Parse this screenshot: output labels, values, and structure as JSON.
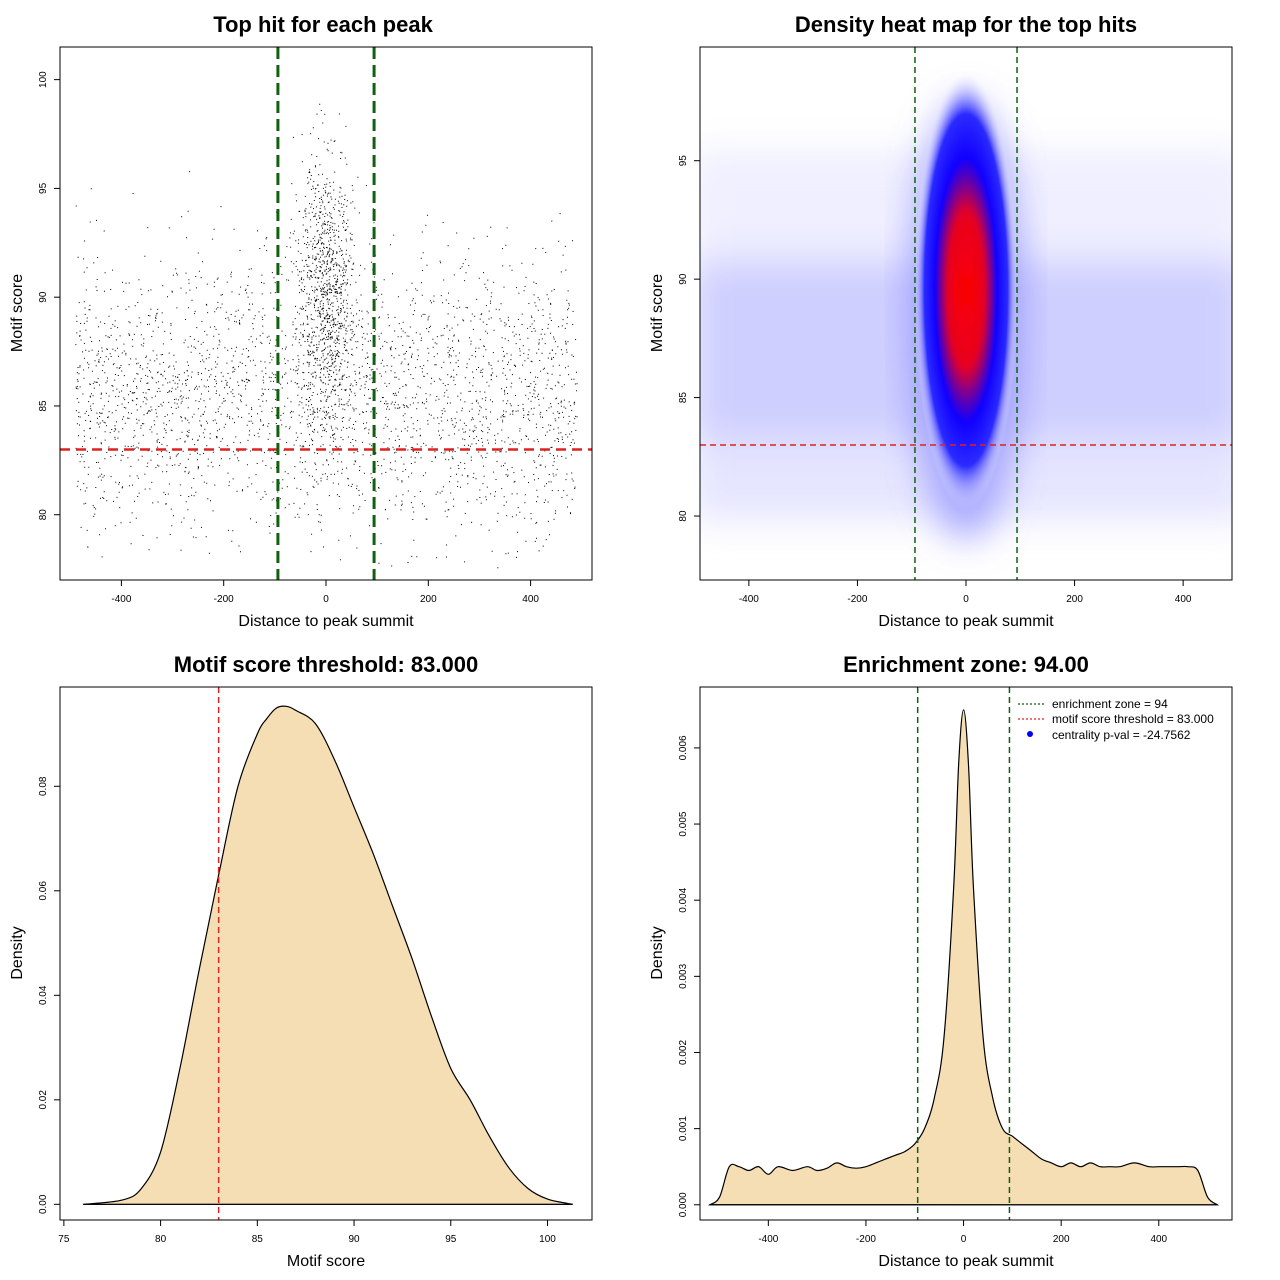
{
  "colors": {
    "threshold": "#dd2222",
    "zone": "#106010",
    "fill": "#f5deb3",
    "point": "#000000",
    "heat_low": "#ffffff",
    "heat_mid": "#0000ff",
    "heat_high": "#ff0000",
    "legend_dot": "#0000ff"
  },
  "chart_data": [
    {
      "type": "scatter",
      "title": "Top hit for each peak",
      "xlabel": "Distance to peak summit",
      "ylabel": "Motif score",
      "xlim": [
        -520,
        520
      ],
      "ylim": [
        77,
        101.5
      ],
      "xticks": [
        -400,
        -200,
        0,
        200,
        400
      ],
      "yticks": [
        80,
        85,
        90,
        95,
        100
      ],
      "threshold": 83,
      "zone": [
        -94,
        94
      ],
      "x_range": [
        -490,
        490
      ],
      "point_count": 20000
    },
    {
      "type": "heatmap",
      "title": "Density heat map for the top hits",
      "xlabel": "Distance to peak summit",
      "ylabel": "Motif score",
      "xlim": [
        -490,
        490
      ],
      "ylim": [
        77.3,
        99.8
      ],
      "xticks": [
        -400,
        -200,
        0,
        200,
        400
      ],
      "yticks": [
        80,
        85,
        90,
        95
      ],
      "threshold": 83,
      "zone": [
        -94,
        94
      ],
      "hotspot": {
        "x": 0,
        "y": 89
      }
    },
    {
      "type": "area",
      "title": "Motif score threshold: 83.000",
      "xlabel": "Motif score",
      "ylabel": "Density",
      "xlim": [
        74.8,
        102.3
      ],
      "ylim": [
        -0.003,
        0.099
      ],
      "xticks": [
        75,
        80,
        85,
        90,
        95,
        100
      ],
      "yticks": [
        0.0,
        0.02,
        0.04,
        0.06,
        0.08
      ],
      "ytick_labels": [
        "0.00",
        "0.02",
        "0.04",
        "0.06",
        "0.08"
      ],
      "threshold": 83,
      "x": [
        76,
        78,
        79,
        80,
        81,
        82,
        83,
        84,
        85,
        85.5,
        86,
        86.5,
        87,
        88,
        89,
        90,
        91,
        92,
        93,
        94,
        95,
        96,
        97,
        98,
        99,
        100,
        101,
        101.3
      ],
      "y": [
        0,
        0.0008,
        0.003,
        0.01,
        0.026,
        0.045,
        0.063,
        0.08,
        0.09,
        0.093,
        0.095,
        0.0953,
        0.0945,
        0.092,
        0.085,
        0.076,
        0.067,
        0.057,
        0.047,
        0.036,
        0.026,
        0.02,
        0.013,
        0.007,
        0.003,
        0.001,
        0.0002,
        0
      ]
    },
    {
      "type": "area",
      "title": "Enrichment zone: 94.00",
      "xlabel": "Distance to peak summit",
      "ylabel": "Density",
      "xlim": [
        -540,
        550
      ],
      "ylim": [
        -0.0002,
        0.0068
      ],
      "xticks": [
        -400,
        -200,
        0,
        200,
        400
      ],
      "yticks": [
        0.0,
        0.001,
        0.002,
        0.003,
        0.004,
        0.005,
        0.006
      ],
      "ytick_labels": [
        "0.000",
        "0.001",
        "0.002",
        "0.003",
        "0.004",
        "0.005",
        "0.006"
      ],
      "zone": [
        -94,
        94
      ],
      "x": [
        -520,
        -500,
        -480,
        -460,
        -440,
        -420,
        -400,
        -380,
        -350,
        -320,
        -300,
        -280,
        -260,
        -240,
        -220,
        -200,
        -180,
        -160,
        -140,
        -120,
        -100,
        -80,
        -60,
        -40,
        -20,
        -10,
        0,
        10,
        20,
        40,
        60,
        80,
        100,
        120,
        140,
        160,
        180,
        200,
        220,
        240,
        260,
        280,
        300,
        320,
        350,
        380,
        400,
        420,
        440,
        460,
        480,
        500,
        520
      ],
      "y": [
        0,
        0.0001,
        0.0005,
        0.0005,
        0.00045,
        0.0005,
        0.0004,
        0.0005,
        0.00045,
        0.0005,
        0.00045,
        0.00048,
        0.00055,
        0.0005,
        0.00048,
        0.0005,
        0.00055,
        0.0006,
        0.00065,
        0.0007,
        0.0008,
        0.001,
        0.0014,
        0.0022,
        0.0042,
        0.0058,
        0.0065,
        0.0058,
        0.0042,
        0.0022,
        0.0014,
        0.001,
        0.0009,
        0.0008,
        0.0007,
        0.0006,
        0.00055,
        0.0005,
        0.00055,
        0.0005,
        0.00055,
        0.0005,
        0.0005,
        0.0005,
        0.00055,
        0.0005,
        0.0005,
        0.0005,
        0.0005,
        0.0005,
        0.00045,
        0.0001,
        0
      ]
    }
  ],
  "legend": {
    "items": [
      {
        "label": "enrichment zone = 94",
        "kind": "dotted-line",
        "color": "#106010"
      },
      {
        "label": "motif score threshold = 83.000",
        "kind": "dotted-line",
        "color": "#dd2222"
      },
      {
        "label": "centrality p-val = -24.7562",
        "kind": "dot",
        "color": "#0000ff"
      }
    ]
  }
}
